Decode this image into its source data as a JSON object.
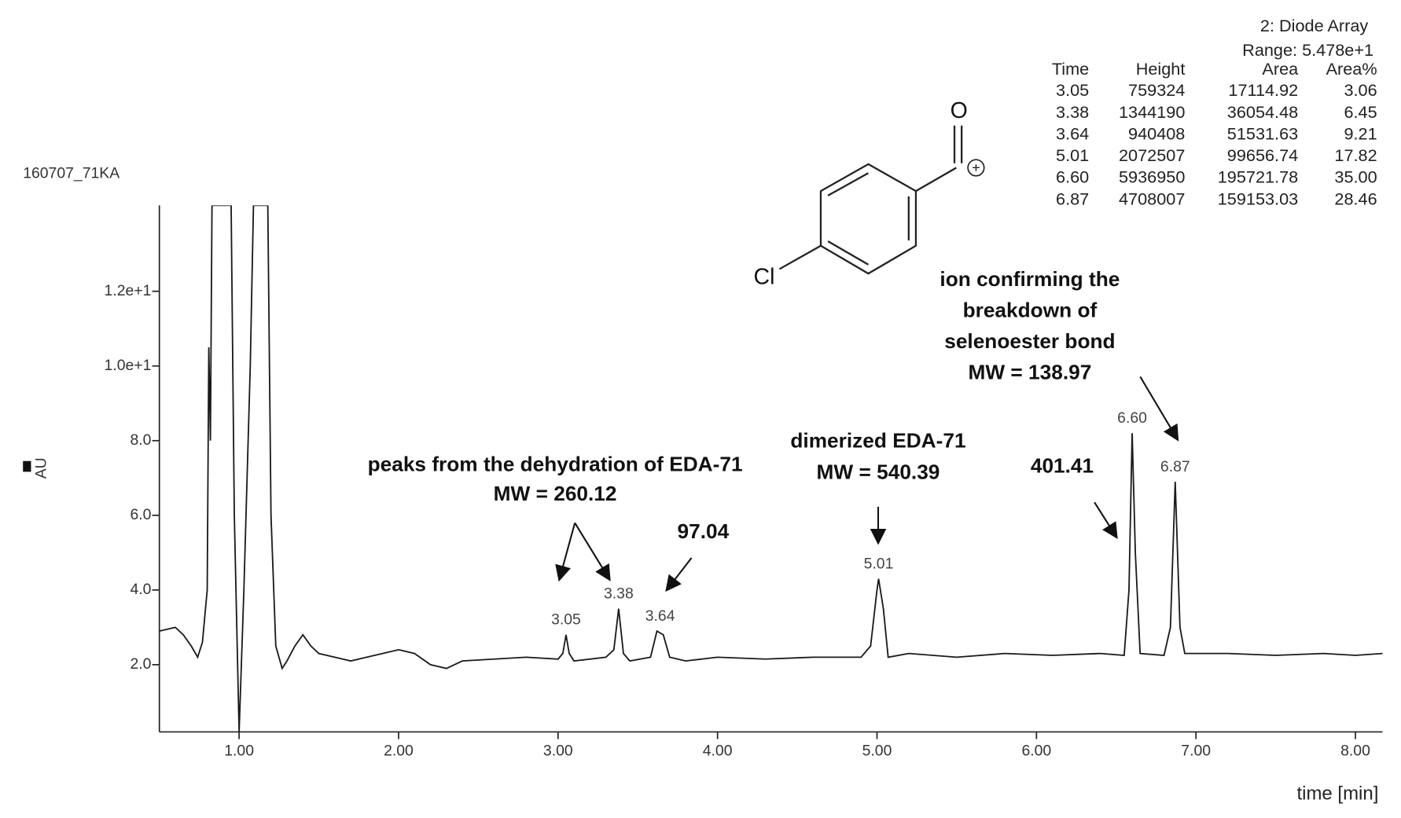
{
  "chart_data": {
    "type": "line",
    "sample_name": "160707_71KA",
    "detector": "2: Diode Array",
    "range": "Range: 5.478e+1",
    "y_label": "AU",
    "x_label": "time [min]",
    "xlim": [
      0.5,
      8.17
    ],
    "ylim": [
      0.2,
      14.3
    ],
    "xticks": [
      {
        "value": 1,
        "label": "1.00"
      },
      {
        "value": 2,
        "label": "2.00"
      },
      {
        "value": 3,
        "label": "3.00"
      },
      {
        "value": 4,
        "label": "4.00"
      },
      {
        "value": 5,
        "label": "5.00"
      },
      {
        "value": 6,
        "label": "6.00"
      },
      {
        "value": 7,
        "label": "7.00"
      },
      {
        "value": 8,
        "label": "8.00"
      }
    ],
    "yticks": [
      {
        "value": 2,
        "label": "2.0"
      },
      {
        "value": 4,
        "label": "4.0"
      },
      {
        "value": 6,
        "label": "6.0"
      },
      {
        "value": 8,
        "label": "8.0"
      },
      {
        "value": 10,
        "label": "1.0e+1"
      },
      {
        "value": 12,
        "label": "1.2e+1"
      }
    ],
    "series": [
      {
        "color": "#1a1a1a",
        "x": [
          0.5,
          0.6,
          0.65,
          0.7,
          0.74,
          0.77,
          0.8,
          0.81,
          0.82,
          0.83,
          0.84,
          0.95,
          0.97,
          1.0,
          1.03,
          1.07,
          1.09,
          1.18,
          1.2,
          1.23,
          1.27,
          1.3,
          1.35,
          1.4,
          1.45,
          1.5,
          1.6,
          1.7,
          1.8,
          1.9,
          2.0,
          2.1,
          2.2,
          2.3,
          2.4,
          2.6,
          2.8,
          3.0,
          3.03,
          3.05,
          3.07,
          3.1,
          3.3,
          3.35,
          3.38,
          3.41,
          3.45,
          3.58,
          3.62,
          3.66,
          3.7,
          3.8,
          4.0,
          4.3,
          4.6,
          4.9,
          4.96,
          5.0,
          5.01,
          5.04,
          5.07,
          5.2,
          5.5,
          5.8,
          6.1,
          6.4,
          6.55,
          6.58,
          6.6,
          6.62,
          6.65,
          6.8,
          6.84,
          6.87,
          6.9,
          6.93,
          7.2,
          7.5,
          7.8,
          8.0,
          8.17
        ],
        "values": [
          2.9,
          3.0,
          2.8,
          2.5,
          2.2,
          2.6,
          4.0,
          10.5,
          8.0,
          14.3,
          14.3,
          14.3,
          6.0,
          0.2,
          4.0,
          10.0,
          14.3,
          14.3,
          6.0,
          2.5,
          1.9,
          2.1,
          2.5,
          2.8,
          2.5,
          2.3,
          2.2,
          2.1,
          2.2,
          2.3,
          2.4,
          2.3,
          2.0,
          1.9,
          2.1,
          2.15,
          2.2,
          2.15,
          2.3,
          2.8,
          2.3,
          2.1,
          2.2,
          2.4,
          3.5,
          2.3,
          2.1,
          2.2,
          2.9,
          2.8,
          2.2,
          2.1,
          2.2,
          2.15,
          2.2,
          2.2,
          2.5,
          4.0,
          4.3,
          3.5,
          2.2,
          2.3,
          2.2,
          2.3,
          2.25,
          2.3,
          2.25,
          4.0,
          8.2,
          5.0,
          2.3,
          2.25,
          3.0,
          6.9,
          3.0,
          2.3,
          2.3,
          2.25,
          2.3,
          2.25,
          2.3
        ]
      }
    ],
    "peak_labels": [
      {
        "value": 3.05,
        "label": "3.05"
      },
      {
        "value": 3.38,
        "label": "3.38"
      },
      {
        "value": 3.64,
        "label": "3.64"
      },
      {
        "value": 5.01,
        "label": "5.01"
      },
      {
        "value": 6.6,
        "label": "6.60"
      },
      {
        "value": 6.87,
        "label": "6.87"
      }
    ],
    "peak_heights": [
      2.8,
      3.5,
      2.9,
      4.3,
      8.2,
      6.9
    ],
    "table": {
      "columns": [
        "Time",
        "Height",
        "Area",
        "Area%"
      ],
      "rows": [
        [
          "3.05",
          "759324",
          "17114.92",
          "3.06"
        ],
        [
          "3.38",
          "1344190",
          "36054.48",
          "6.45"
        ],
        [
          "3.64",
          "940408",
          "51531.63",
          "9.21"
        ],
        [
          "5.01",
          "2072507",
          "99656.74",
          "17.82"
        ],
        [
          "6.60",
          "5936950",
          "195721.78",
          "35.00"
        ],
        [
          "6.87",
          "4708007",
          "159153.03",
          "28.46"
        ]
      ]
    },
    "annotations": [
      {
        "lines": [
          "peaks from the dehydration of EDA-71",
          "MW = 260.12"
        ]
      },
      {
        "lines": [
          "97.04"
        ]
      },
      {
        "lines": [
          "dimerized EDA-71",
          "MW = 540.39"
        ]
      },
      {
        "lines": [
          "401.41"
        ]
      },
      {
        "lines": [
          "ion confirming the",
          "breakdown of",
          "selenoester bond",
          "MW = 138.97"
        ]
      }
    ],
    "structure": {
      "oxygen": "O",
      "chlorine": "Cl",
      "charge": "+"
    }
  }
}
